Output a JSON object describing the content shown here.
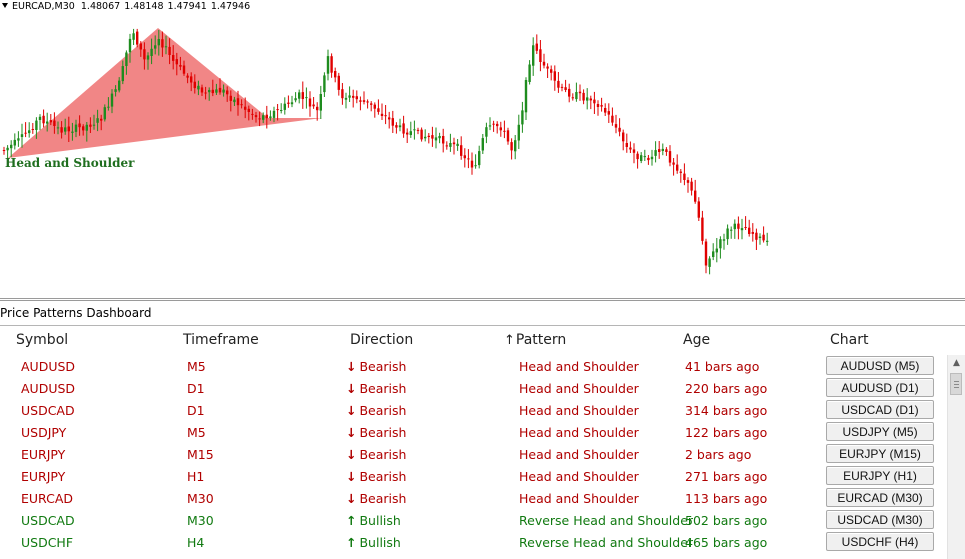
{
  "chart": {
    "symbol": "EURCAD,M30",
    "ohlc": [
      "1.48067",
      "1.48148",
      "1.47941",
      "1.47946"
    ],
    "pattern_label": "Head and Shoulder",
    "colors": {
      "bull_candle": "#1e8c1e",
      "bear_candle": "#e00000",
      "pattern_fill": "#f08080"
    }
  },
  "dashboard": {
    "title": "Price Patterns Dashboard",
    "columns": {
      "symbol": "Symbol",
      "timeframe": "Timeframe",
      "direction": "Direction",
      "pattern": "Pattern",
      "age": "Age",
      "chart": "Chart"
    },
    "sorted_column": "Pattern",
    "rows": [
      {
        "symbol": "AUDUSD",
        "timeframe": "M5",
        "direction": "Bearish",
        "pattern": "Head and Shoulder",
        "age": "41 bars ago",
        "chart": "AUDUSD (M5)"
      },
      {
        "symbol": "AUDUSD",
        "timeframe": "D1",
        "direction": "Bearish",
        "pattern": "Head and Shoulder",
        "age": "220 bars ago",
        "chart": "AUDUSD (D1)"
      },
      {
        "symbol": "USDCAD",
        "timeframe": "D1",
        "direction": "Bearish",
        "pattern": "Head and Shoulder",
        "age": "314 bars ago",
        "chart": "USDCAD (D1)"
      },
      {
        "symbol": "USDJPY",
        "timeframe": "M5",
        "direction": "Bearish",
        "pattern": "Head and Shoulder",
        "age": "122 bars ago",
        "chart": "USDJPY (M5)"
      },
      {
        "symbol": "EURJPY",
        "timeframe": "M15",
        "direction": "Bearish",
        "pattern": "Head and Shoulder",
        "age": "2 bars ago",
        "chart": "EURJPY (M15)"
      },
      {
        "symbol": "EURJPY",
        "timeframe": "H1",
        "direction": "Bearish",
        "pattern": "Head and Shoulder",
        "age": "271 bars ago",
        "chart": "EURJPY (H1)"
      },
      {
        "symbol": "EURCAD",
        "timeframe": "M30",
        "direction": "Bearish",
        "pattern": "Head and Shoulder",
        "age": "113 bars ago",
        "chart": "EURCAD (M30)"
      },
      {
        "symbol": "USDCAD",
        "timeframe": "M30",
        "direction": "Bullish",
        "pattern": "Reverse Head and Shoulder",
        "age": "502 bars ago",
        "chart": "USDCAD (M30)"
      },
      {
        "symbol": "USDCHF",
        "timeframe": "H4",
        "direction": "Bullish",
        "pattern": "Reverse Head and Shoulder",
        "age": "465 bars ago",
        "chart": "USDCHF (H4)"
      }
    ],
    "icons": {
      "bearish": "arrow-down-icon",
      "bullish": "arrow-up-icon",
      "sort": "sort-up-arrow-icon",
      "scroll_up": "scroll-up-icon"
    }
  }
}
